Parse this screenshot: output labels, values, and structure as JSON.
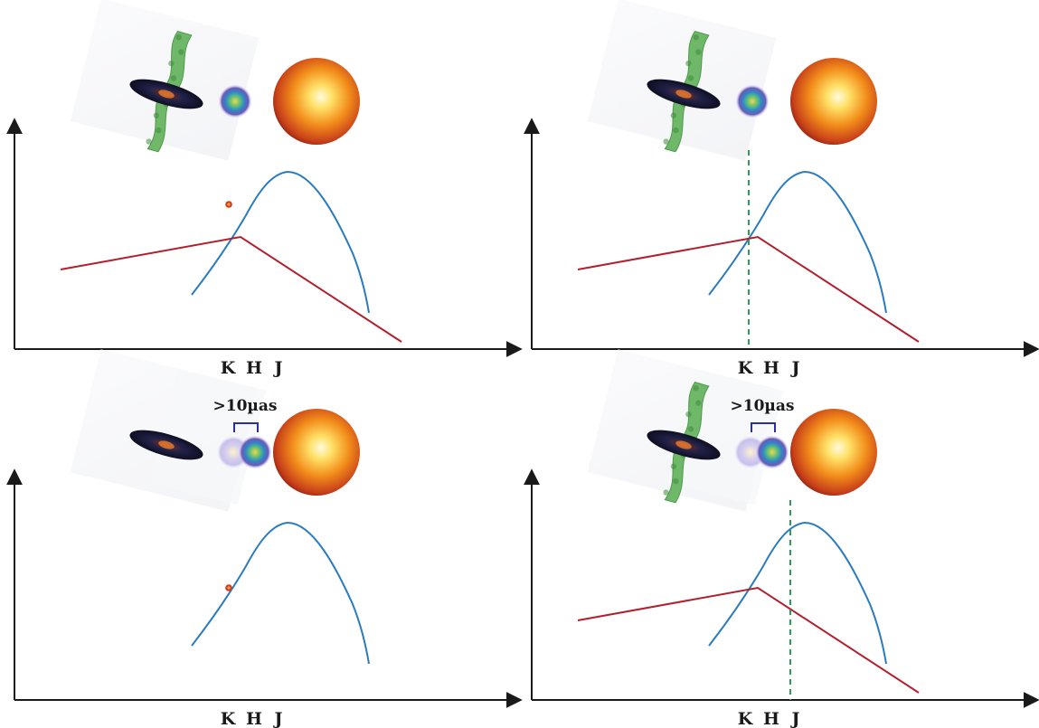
{
  "panels": [
    {
      "axis_ticks": [
        "K",
        "H",
        "J"
      ],
      "separation_label": "",
      "show_jet": true,
      "show_dashed_line": false,
      "show_red_sed": true,
      "show_red_dot": true,
      "show_offset_ghost": false
    },
    {
      "axis_ticks": [
        "K",
        "H",
        "J"
      ],
      "separation_label": "",
      "show_jet": true,
      "show_dashed_line": true,
      "show_red_sed": true,
      "show_red_dot": false,
      "show_offset_ghost": false
    },
    {
      "axis_ticks": [
        "K",
        "H",
        "J"
      ],
      "separation_label": ">10µas",
      "show_jet": false,
      "show_dashed_line": false,
      "show_red_sed": false,
      "show_red_dot": true,
      "show_offset_ghost": true
    },
    {
      "axis_ticks": [
        "K",
        "H",
        "J"
      ],
      "separation_label": ">10µas",
      "show_jet": true,
      "show_dashed_line": true,
      "show_red_sed": true,
      "show_red_dot": false,
      "show_offset_ghost": true
    }
  ],
  "colors": {
    "axis": "#1a1a1a",
    "blue_curve": "#2b7bbf",
    "red_curve": "#b21f2d",
    "dashed_line": "#2e9c58",
    "bracket": "#26329a",
    "jet": "#6fb86a",
    "disk": "#1c1c3c"
  }
}
